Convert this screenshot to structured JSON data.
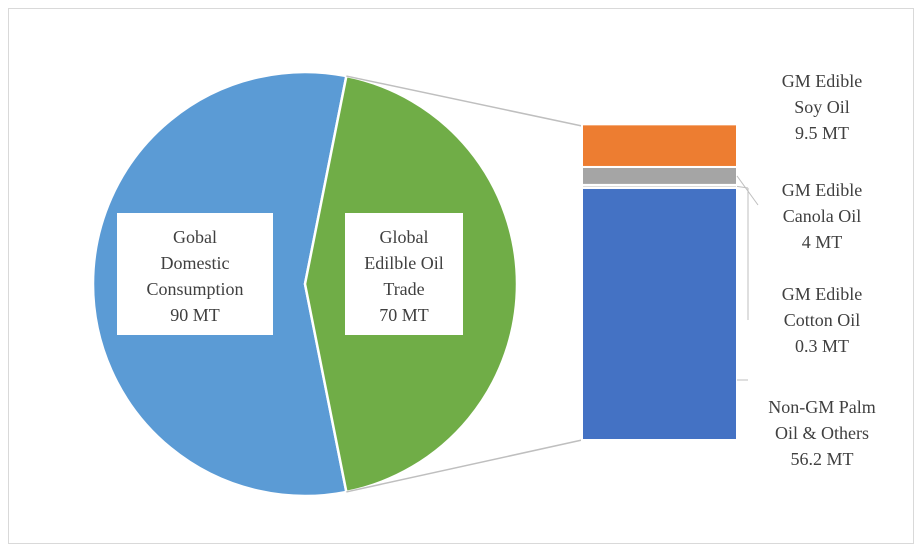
{
  "chart_data": {
    "type": "bar-of-pie",
    "title": "",
    "pie": {
      "slices": [
        {
          "name": "Gobal Domestic Consumption",
          "lines": [
            "Gobal",
            "Domestic",
            "Consumption",
            "90 MT"
          ],
          "value": 90,
          "unit": "MT",
          "color": "#5b9bd5"
        },
        {
          "name": "Global Edilble Oil Trade",
          "lines": [
            "Global",
            "Edilble Oil",
            "Trade",
            "70 MT"
          ],
          "value": 70,
          "unit": "MT",
          "color": "#70ad47"
        }
      ]
    },
    "bar": {
      "breakdown_of": "Global Edilble Oil Trade",
      "segments": [
        {
          "name": "Non-GM Palm Oil & Others",
          "lines": [
            "Non-GM Palm",
            "Oil & Others",
            "56.2 MT"
          ],
          "value": 56.2,
          "unit": "MT",
          "color": "#4472c4"
        },
        {
          "name": "GM Edible Cotton Oil",
          "lines": [
            "GM Edible",
            "Cotton Oil",
            "0.3 MT"
          ],
          "value": 0.3,
          "unit": "MT",
          "color": "#d9d9d9"
        },
        {
          "name": "GM Edible Canola Oil",
          "lines": [
            "GM Edible",
            "Canola Oil",
            "4 MT"
          ],
          "value": 4,
          "unit": "MT",
          "color": "#a5a5a5"
        },
        {
          "name": "GM Edible Soy Oil",
          "lines": [
            "GM Edible",
            "Soy Oil",
            "9.5 MT"
          ],
          "value": 9.5,
          "unit": "MT",
          "color": "#ed7d31"
        }
      ]
    },
    "connector_color": "#bfbfbf",
    "legend": "none"
  }
}
